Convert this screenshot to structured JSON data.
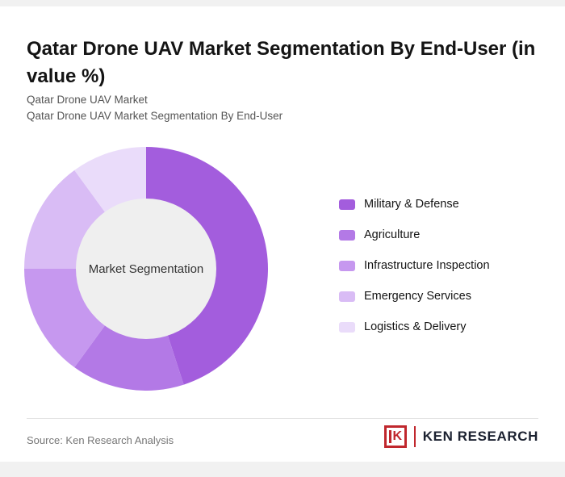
{
  "page": {
    "title": "Qatar Drone UAV Market Segmentation By End-User (in value %)",
    "subtitle1": "Qatar Drone UAV Market",
    "subtitle2": "Qatar Drone UAV Market Segmentation By End-User",
    "source": "Source: Ken Research Analysis",
    "brand": {
      "logo_letter": "K",
      "name": "KEN RESEARCH",
      "accent_color": "#c0272d",
      "text_color": "#1b2130"
    }
  },
  "chart_data": {
    "type": "pie",
    "donut": true,
    "center_label": "Market Segmentation",
    "categories": [
      "Military & Defense",
      "Agriculture",
      "Infrastructure Inspection",
      "Emergency Services",
      "Logistics & Delivery"
    ],
    "values": [
      45,
      15,
      15,
      15,
      10
    ],
    "colors": [
      "#a35ddd",
      "#b379e6",
      "#c698ef",
      "#d9bcf5",
      "#eadcfa"
    ],
    "hole_color": "#efefef",
    "legend_position": "right",
    "title": "Qatar Drone UAV Market Segmentation By End-User (in value %)"
  }
}
